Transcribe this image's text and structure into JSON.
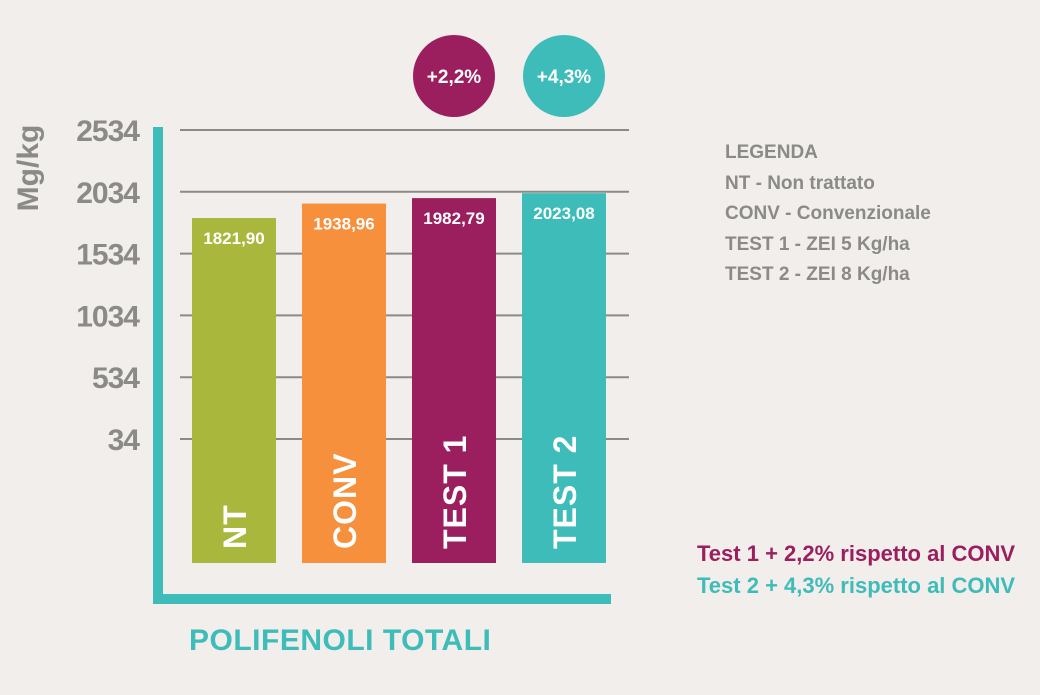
{
  "chart_data": {
    "type": "bar",
    "title": "",
    "xlabel": "POLIFENOLI TOTALI",
    "ylabel": "Mg/kg",
    "yticks": [
      34,
      534,
      1034,
      1534,
      2034,
      2534
    ],
    "ylim": [
      34,
      2534
    ],
    "grid": true,
    "categories": [
      "NT",
      "CONV",
      "TEST 1",
      "TEST 2"
    ],
    "values": [
      1821.9,
      1938.96,
      1982.79,
      2023.08
    ],
    "value_labels": [
      "1821,90",
      "1938,96",
      "1982,79",
      "2023,08"
    ],
    "colors": [
      "#a9b83c",
      "#f7903d",
      "#9b1e5e",
      "#3dbcb9"
    ],
    "badges": [
      {
        "category": "TEST 1",
        "text": "+2,2%",
        "color": "#9b1e5e"
      },
      {
        "category": "TEST 2",
        "text": "+4,3%",
        "color": "#3dbcb9"
      }
    ]
  },
  "legend": {
    "title": "LEGENDA",
    "items": [
      "NT - Non trattato",
      "CONV - Convenzionale",
      "TEST 1 - ZEI 5 Kg/ha",
      "TEST 2 - ZEI 8 Kg/ha"
    ]
  },
  "notes": [
    {
      "text": "Test 1 + 2,2% rispetto al CONV",
      "color": "#9b1e5e"
    },
    {
      "text": "Test 2 + 4,3% rispetto al CONV",
      "color": "#3dbcb9"
    }
  ],
  "colors": {
    "background": "#f2eeeb",
    "axis": "#3dbcb9",
    "grid": "#8a8a86",
    "label_gray": "#8a8a86"
  }
}
